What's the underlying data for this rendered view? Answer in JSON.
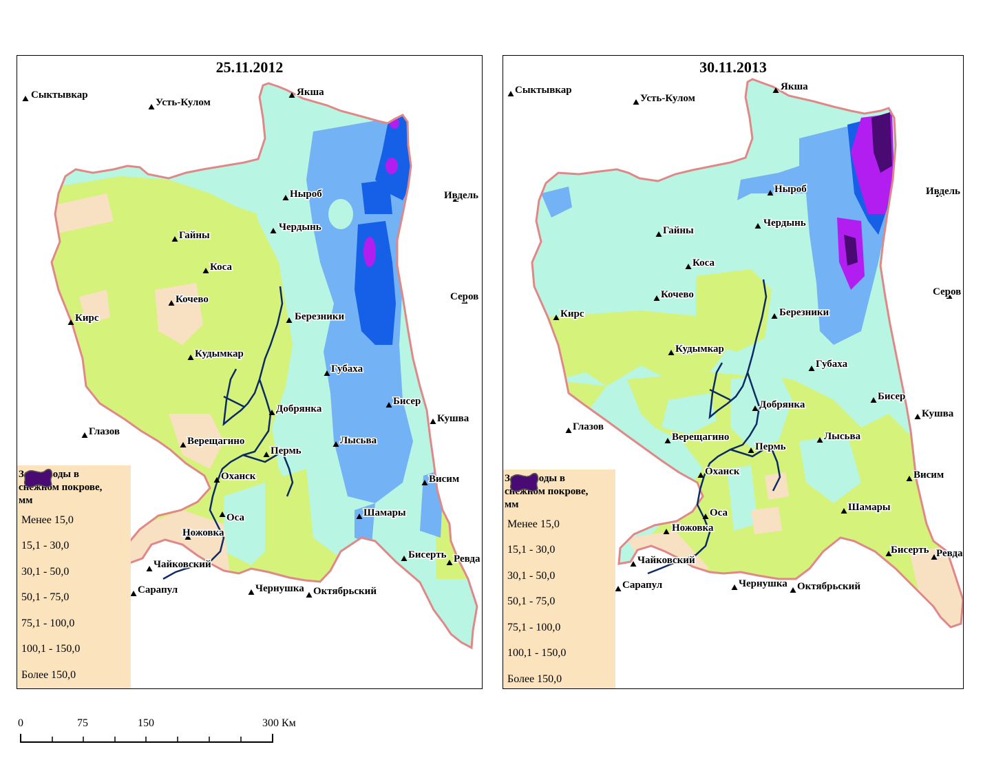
{
  "maps": [
    {
      "title": "25.11.2012",
      "cities": [
        {
          "name": "Сыктывкар"
        },
        {
          "name": "Усть-Кулом"
        },
        {
          "name": "Якша"
        },
        {
          "name": "Ныроб"
        },
        {
          "name": "Ивдель"
        },
        {
          "name": "Чердынь"
        },
        {
          "name": "Гайны"
        },
        {
          "name": "Коса"
        },
        {
          "name": "Кочево"
        },
        {
          "name": "Кирс"
        },
        {
          "name": "Березники"
        },
        {
          "name": "Серов"
        },
        {
          "name": "Кудымкар"
        },
        {
          "name": "Губаха"
        },
        {
          "name": "Бисер"
        },
        {
          "name": "Кушва"
        },
        {
          "name": "Добрянка"
        },
        {
          "name": "Глазов"
        },
        {
          "name": "Верещагино"
        },
        {
          "name": "Пермь"
        },
        {
          "name": "Лысьва"
        },
        {
          "name": "Оханск"
        },
        {
          "name": "Висим"
        },
        {
          "name": "Оса"
        },
        {
          "name": "Шамары"
        },
        {
          "name": "Ножовка"
        },
        {
          "name": "Бисерть"
        },
        {
          "name": "Ревда"
        },
        {
          "name": "Чайковский"
        },
        {
          "name": "Сарапул"
        },
        {
          "name": "Чернушка"
        },
        {
          "name": "Октябрьский"
        }
      ]
    },
    {
      "title": "30.11.2013",
      "cities": [
        {
          "name": "Сыктывкар"
        },
        {
          "name": "Усть-Кулом"
        },
        {
          "name": "Якша"
        },
        {
          "name": "Ныроб"
        },
        {
          "name": "Ивдель"
        },
        {
          "name": "Чердынь"
        },
        {
          "name": "Гайны"
        },
        {
          "name": "Коса"
        },
        {
          "name": "Кочево"
        },
        {
          "name": "Кирс"
        },
        {
          "name": "Березники"
        },
        {
          "name": "Серов"
        },
        {
          "name": "Кудымкар"
        },
        {
          "name": "Губаха"
        },
        {
          "name": "Бисер"
        },
        {
          "name": "Кушва"
        },
        {
          "name": "Добрянка"
        },
        {
          "name": "Глазов"
        },
        {
          "name": "Верещагино"
        },
        {
          "name": "Пермь"
        },
        {
          "name": "Лысьва"
        },
        {
          "name": "Оханск"
        },
        {
          "name": "Висим"
        },
        {
          "name": "Оса"
        },
        {
          "name": "Шамары"
        },
        {
          "name": "Ножовка"
        },
        {
          "name": "Бисерть"
        },
        {
          "name": "Ревда"
        },
        {
          "name": "Чайковский"
        },
        {
          "name": "Сарапул"
        },
        {
          "name": "Чернушка"
        },
        {
          "name": "Октябрьский"
        }
      ]
    }
  ],
  "legend": {
    "title_lines": [
      "Запас воды в",
      "снежном покрове,",
      "мм"
    ],
    "classes": [
      {
        "label": "Менее 15,0",
        "color": "#f8e1c2"
      },
      {
        "label": "15,1 - 30,0",
        "color": "#d5f27a"
      },
      {
        "label": "30,1 - 50,0",
        "color": "#b8f5e2"
      },
      {
        "label": "50,1 - 75,0",
        "color": "#73b2f5"
      },
      {
        "label": "75,1 - 100,0",
        "color": "#1560e6"
      },
      {
        "label": "100,1 - 150,0",
        "color": "#b21ef0"
      },
      {
        "label": "Более 150,0",
        "color": "#4a0a74"
      }
    ]
  },
  "colors": {
    "boundary": "#e08888",
    "river": "#0c2a66",
    "legend_bg": "#fbe3be"
  },
  "scale": {
    "labels": [
      "0",
      "75",
      "150",
      "300 Км"
    ]
  }
}
